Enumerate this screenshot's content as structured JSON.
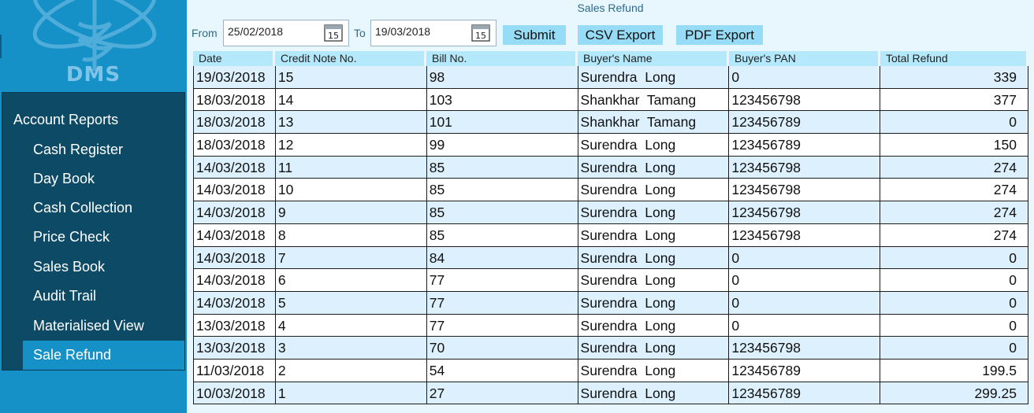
{
  "app": {
    "logo_text": "DMS"
  },
  "sidebar": {
    "title": "Account Reports",
    "items": [
      {
        "label": "Cash Register"
      },
      {
        "label": "Day Book"
      },
      {
        "label": "Cash Collection"
      },
      {
        "label": "Price Check"
      },
      {
        "label": "Sales Book"
      },
      {
        "label": "Audit Trail"
      },
      {
        "label": "Materialised View"
      },
      {
        "label": "Sale Refund",
        "active": true
      }
    ]
  },
  "page": {
    "title": "Sales Refund"
  },
  "filters": {
    "from_label": "From",
    "from_value": "25/02/2018",
    "to_label": "To",
    "to_value": "19/03/2018",
    "calendar_day": "15"
  },
  "actions": {
    "submit": "Submit",
    "csv": "CSV Export",
    "pdf": "PDF Export"
  },
  "table": {
    "columns": [
      "Date",
      "Credit Note No.",
      "Bill No.",
      "Buyer's Name",
      "Buyer's PAN",
      "Total Refund"
    ],
    "rows": [
      [
        "19/03/2018",
        "15",
        "98",
        "Surendra  Long",
        "0",
        "339"
      ],
      [
        "18/03/2018",
        "14",
        "103",
        "Shankhar  Tamang",
        "123456798",
        "377"
      ],
      [
        "18/03/2018",
        "13",
        "101",
        "Shankhar  Tamang",
        "123456789",
        "0"
      ],
      [
        "18/03/2018",
        "12",
        "99",
        "Surendra  Long",
        "123456789",
        "150"
      ],
      [
        "14/03/2018",
        "11",
        "85",
        "Surendra  Long",
        "123456798",
        "274"
      ],
      [
        "14/03/2018",
        "10",
        "85",
        "Surendra  Long",
        "123456798",
        "274"
      ],
      [
        "14/03/2018",
        "9",
        "85",
        "Surendra  Long",
        "123456798",
        "274"
      ],
      [
        "14/03/2018",
        "8",
        "85",
        "Surendra  Long",
        "123456798",
        "274"
      ],
      [
        "14/03/2018",
        "7",
        "84",
        "Surendra  Long",
        "0",
        "0"
      ],
      [
        "14/03/2018",
        "6",
        "77",
        "Surendra  Long",
        "0",
        "0"
      ],
      [
        "14/03/2018",
        "5",
        "77",
        "Surendra  Long",
        "0",
        "0"
      ],
      [
        "13/03/2018",
        "4",
        "77",
        "Surendra  Long",
        "0",
        "0"
      ],
      [
        "13/03/2018",
        "3",
        "70",
        "Surendra  Long",
        "123456798",
        "0"
      ],
      [
        "11/03/2018",
        "2",
        "54",
        "Surendra  Long",
        "123456789",
        "199.5"
      ],
      [
        "10/03/2018",
        "1",
        "27",
        "Surendra  Long",
        "123456789",
        "299.25"
      ]
    ]
  },
  "colors": {
    "sidebar_bg": "#1591c8",
    "menu_bg": "#0d4a66",
    "main_bg": "#e8f7fe",
    "button_bg": "#96dcf6",
    "header_bg": "#b4e8fb",
    "row_alt_bg": "#dcf0fd"
  },
  "icons": {
    "calendar": "calendar-icon",
    "logo": "caduceus-logo"
  }
}
